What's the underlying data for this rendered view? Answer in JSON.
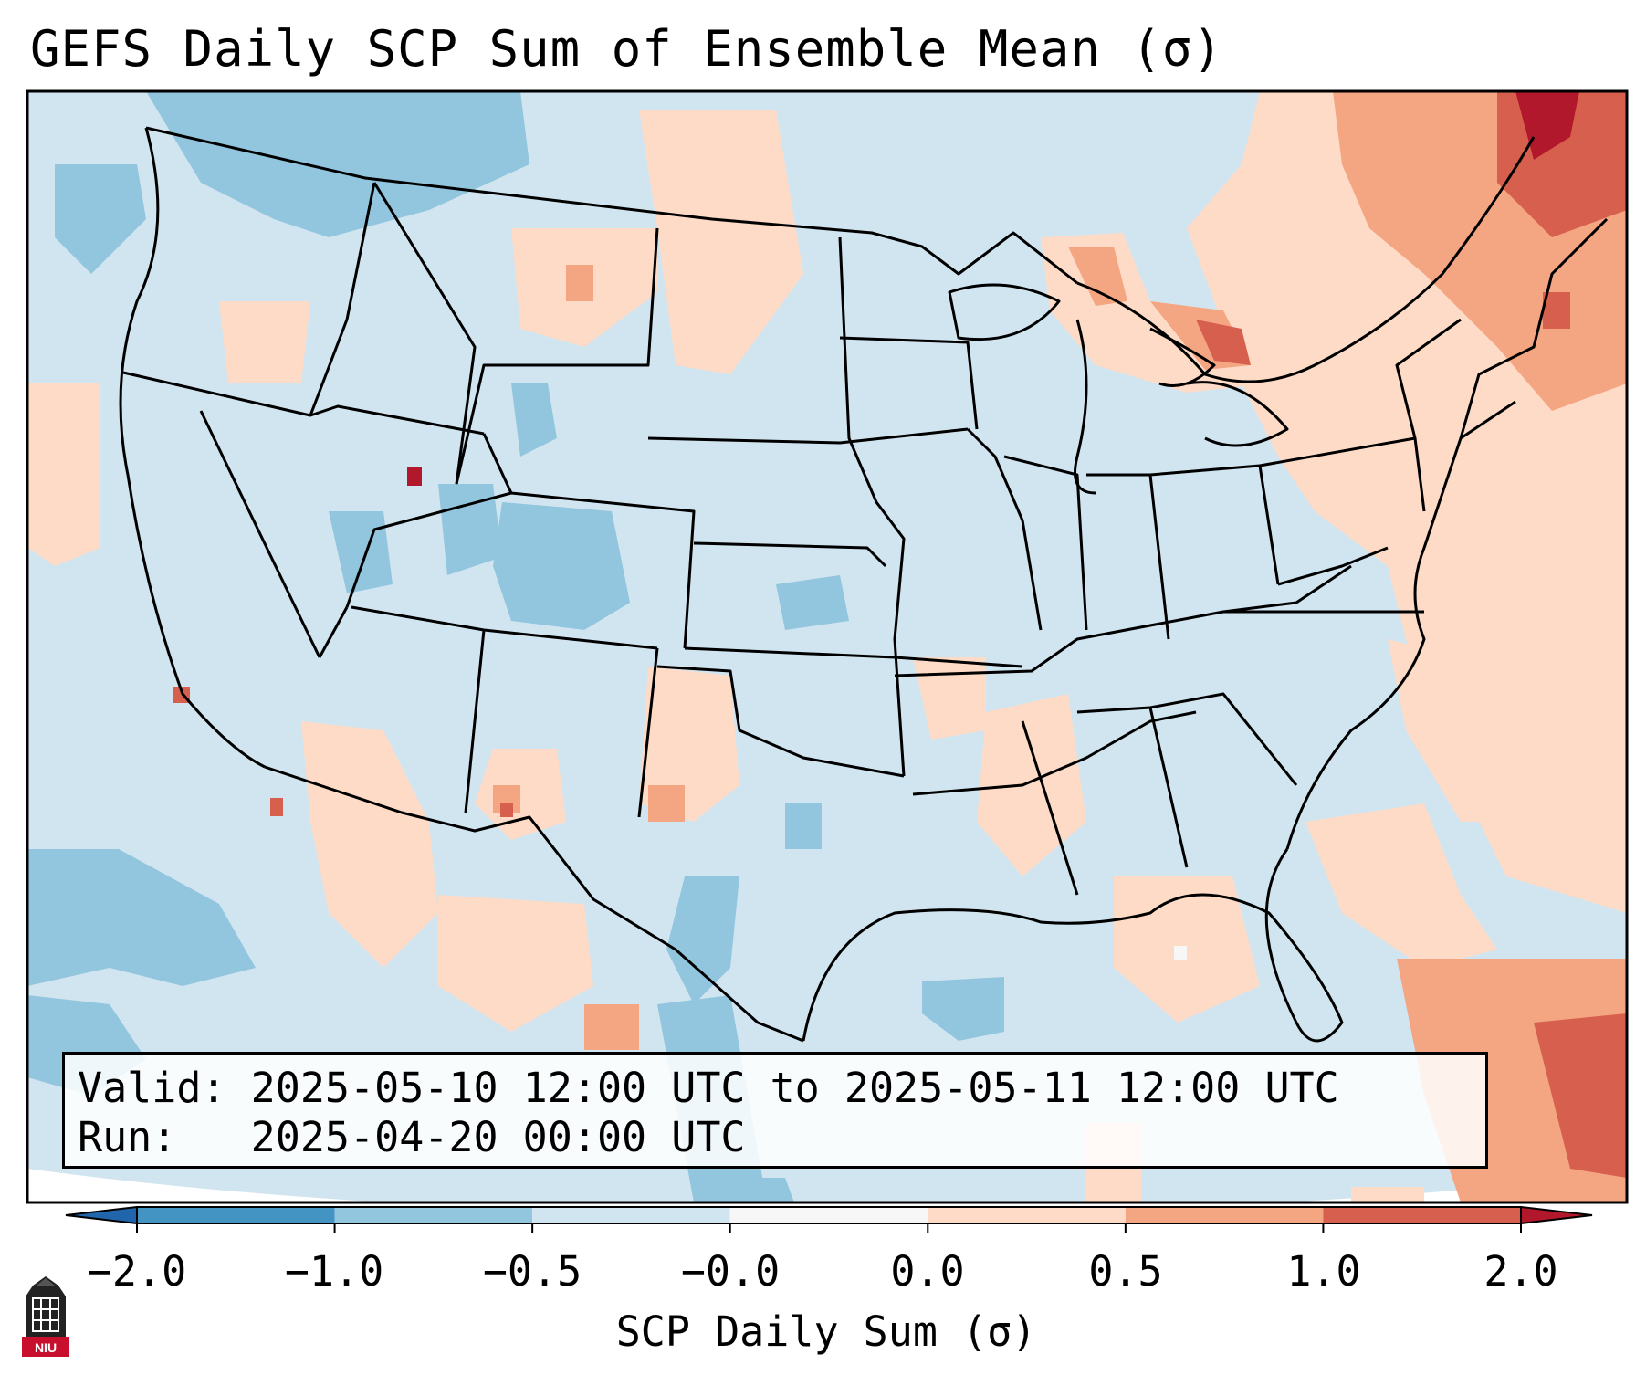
{
  "title": "GEFS Daily SCP Sum of Ensemble Mean (σ)",
  "valid_label": "Valid:",
  "valid_value": "2025-05-10 12:00 UTC to 2025-05-11 12:00 UTC",
  "run_label": "Run:",
  "run_value": "2025-04-20 00:00 UTC",
  "colorbar": {
    "ticks": [
      "−2.0",
      "−1.0",
      "−0.5",
      "−0.0",
      "0.0",
      "0.5",
      "1.0",
      "2.0"
    ],
    "bins": [
      {
        "from": -2.0,
        "to": -1.0,
        "color": "#4393c3"
      },
      {
        "from": -1.0,
        "to": -0.5,
        "color": "#92c5de"
      },
      {
        "from": -0.5,
        "to": -0.0,
        "color": "#d1e5f0"
      },
      {
        "from": -0.0,
        "to": 0.0,
        "color": "#f7f7f7"
      },
      {
        "from": 0.0,
        "to": 0.5,
        "color": "#fddbc7"
      },
      {
        "from": 0.5,
        "to": 1.0,
        "color": "#f4a582"
      },
      {
        "from": 1.0,
        "to": 2.0,
        "color": "#d6604d"
      }
    ],
    "under_color": "#2166ac",
    "over_color": "#b2182b",
    "label": "SCP Daily Sum (σ)"
  },
  "logo": {
    "text": "NIU",
    "icon": "niu-logo-icon",
    "colors": {
      "tower": "#222222",
      "badge": "#c8102e"
    }
  },
  "map_colors": {
    "background": "#d1e5f0",
    "border": "#000000"
  }
}
